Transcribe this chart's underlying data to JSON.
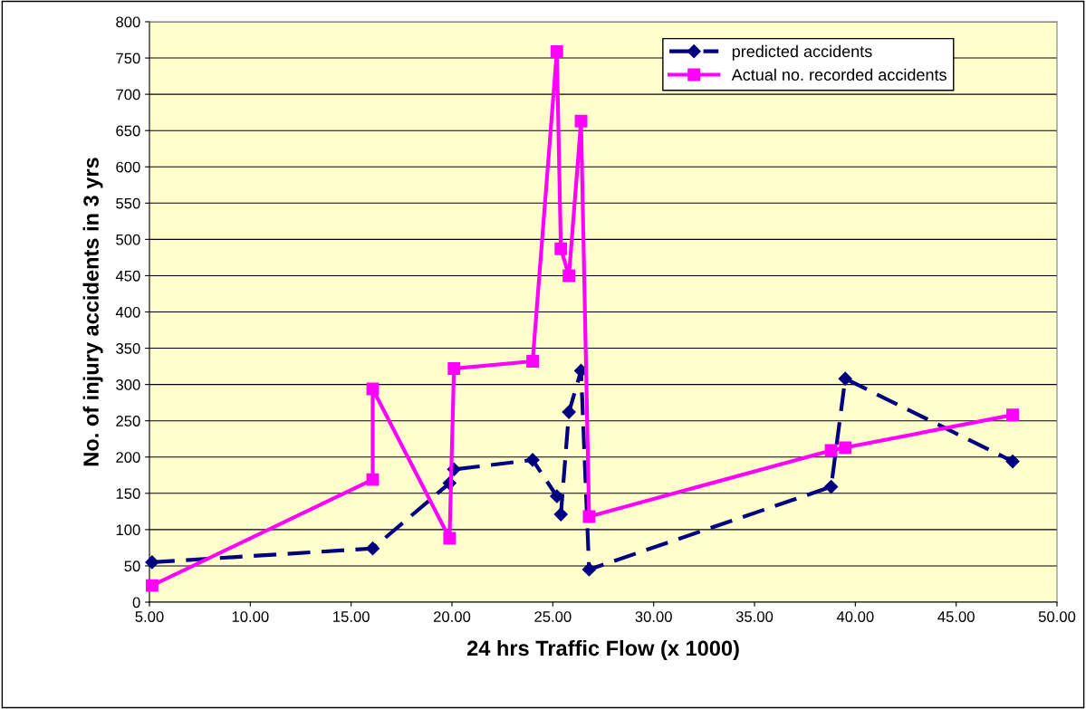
{
  "chart_data": {
    "type": "line",
    "xlabel": "24 hrs Traffic Flow (x 1000)",
    "ylabel": "No. of injury accidents in 3 yrs",
    "xlim": [
      5,
      50
    ],
    "xticks": [
      {
        "value": 5,
        "label": "5.00"
      },
      {
        "value": 10,
        "label": "10.00"
      },
      {
        "value": 15,
        "label": "15.00"
      },
      {
        "value": 20,
        "label": "20.00"
      },
      {
        "value": 25,
        "label": "25.00"
      },
      {
        "value": 30,
        "label": "30.00"
      },
      {
        "value": 35,
        "label": "35.00"
      },
      {
        "value": 40,
        "label": "40.00"
      },
      {
        "value": 45,
        "label": "45.00"
      },
      {
        "value": 50,
        "label": "50.00"
      }
    ],
    "ylim": [
      0,
      800
    ],
    "yticks": [
      0,
      50,
      100,
      150,
      200,
      250,
      300,
      350,
      400,
      450,
      500,
      550,
      600,
      650,
      700,
      750,
      800
    ],
    "grid": "y",
    "legend": "top right",
    "series": [
      {
        "name": "predicted accidents",
        "color": "#000080",
        "marker": "diamond",
        "line_style": "dashed",
        "x": [
          5.13,
          16.07,
          19.88,
          20.1,
          24.0,
          25.2,
          25.4,
          25.8,
          26.4,
          26.8,
          38.8,
          39.5,
          47.8
        ],
        "values": [
          55,
          74,
          164,
          183,
          196,
          146,
          121,
          262,
          319,
          45,
          159,
          308,
          194
        ]
      },
      {
        "name": "Actual no. recorded accidents",
        "color": "#ff00ff",
        "marker": "square",
        "line_style": "solid",
        "x": [
          5.13,
          16.07,
          16.07,
          19.88,
          20.1,
          24.0,
          25.2,
          25.4,
          25.8,
          26.4,
          26.8,
          38.8,
          39.5,
          47.8
        ],
        "values": [
          23,
          169,
          294,
          88,
          322,
          332,
          759,
          487,
          450,
          663,
          118,
          209,
          213,
          258
        ]
      }
    ]
  }
}
